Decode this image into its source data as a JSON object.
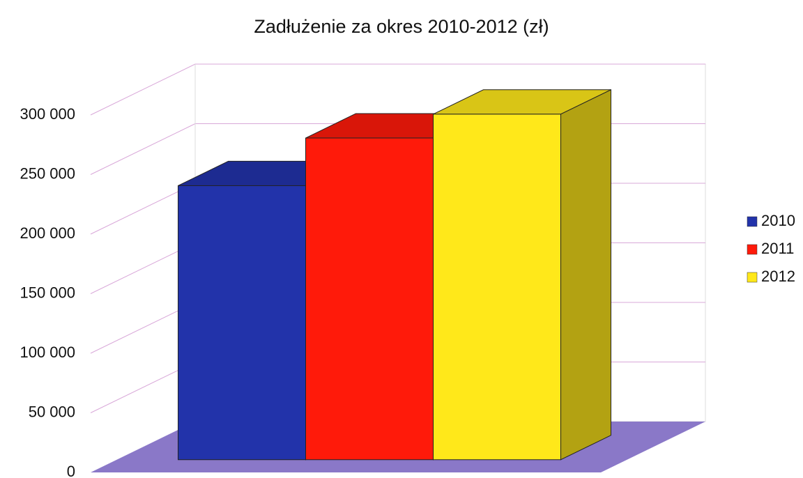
{
  "chart_data": {
    "type": "bar3d",
    "title": "Zadłużenie za okres 2010-2012 (zł)",
    "categories": [
      null
    ],
    "series": [
      {
        "name": "2010",
        "color": "#2233aa",
        "values": [
          230000
        ]
      },
      {
        "name": "2011",
        "color": "#ff1a0a",
        "values": [
          270000
        ]
      },
      {
        "name": "2012",
        "color": "#ffe81a",
        "values": [
          290000
        ]
      }
    ],
    "ylim": [
      0,
      300000
    ],
    "yticks": [
      0,
      {
        "value": 50000,
        "label": "50 000"
      },
      {
        "value": 100000,
        "label": "100 000"
      },
      {
        "value": 150000,
        "label": "150 000"
      },
      {
        "value": 200000,
        "label": "200 000"
      },
      {
        "value": 250000,
        "label": "250 000"
      },
      {
        "value": 300000,
        "label": "300 000"
      }
    ],
    "grid": true,
    "legend": "right"
  }
}
